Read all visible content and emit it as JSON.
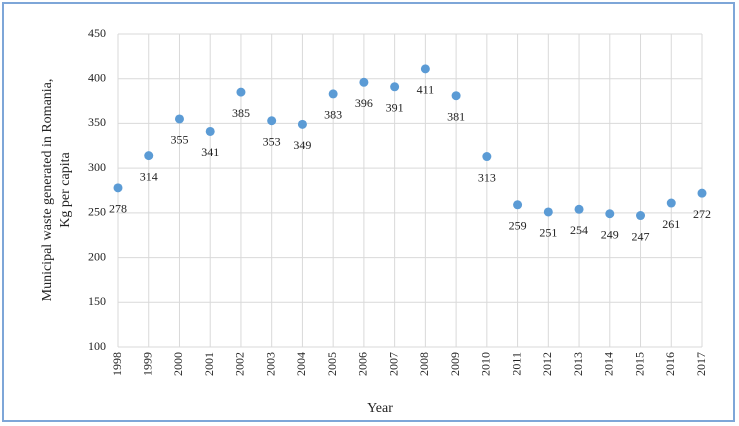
{
  "chart_data": {
    "type": "scatter",
    "x_label": "Year",
    "y_label": [
      "Municipal waste generated in Romania,",
      "Kg per capita"
    ],
    "x": [
      1998,
      1999,
      2000,
      2001,
      2002,
      2003,
      2004,
      2005,
      2006,
      2007,
      2008,
      2009,
      2010,
      2011,
      2012,
      2013,
      2014,
      2015,
      2016,
      2017
    ],
    "values": [
      278,
      314,
      355,
      341,
      385,
      353,
      349,
      383,
      396,
      391,
      411,
      381,
      313,
      259,
      251,
      254,
      249,
      247,
      261,
      272
    ],
    "color": "#5b9bd5",
    "xlim": [
      1998,
      2017
    ],
    "ylim": [
      100,
      450
    ],
    "yticks": [
      100,
      150,
      200,
      250,
      300,
      350,
      400,
      450
    ],
    "grid": true
  }
}
